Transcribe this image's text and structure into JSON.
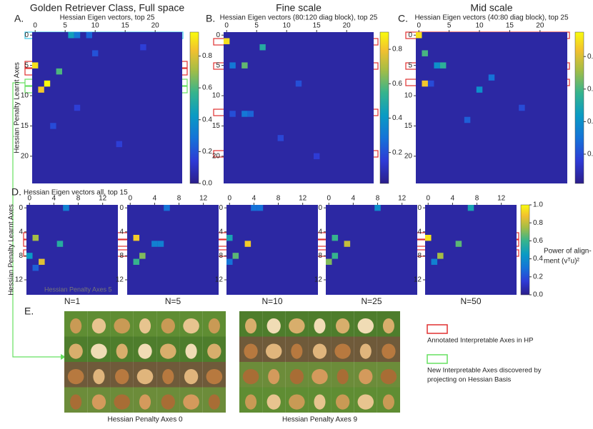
{
  "chart_data": [
    {
      "type": "heatmap",
      "panel": "A.",
      "title": "Golden Retriever Class, Full space",
      "subtitle": "Hessian Eigen vectors, top 25",
      "ylabel": "Hessian Penalty Learnt Axes",
      "size": 25,
      "xticks": [
        0,
        5,
        10,
        15,
        20
      ],
      "yticks": [
        0,
        5,
        10,
        15,
        20
      ],
      "cells": [
        [
          0,
          6,
          0.45
        ],
        [
          0,
          7,
          0.3
        ],
        [
          0,
          9,
          0.25
        ],
        [
          5,
          0,
          0.9
        ],
        [
          6,
          4,
          0.6
        ],
        [
          8,
          2,
          0.95
        ],
        [
          9,
          1,
          0.85
        ],
        [
          3,
          10,
          0.2
        ],
        [
          12,
          7,
          0.15
        ],
        [
          15,
          3,
          0.18
        ],
        [
          18,
          14,
          0.15
        ],
        [
          2,
          18,
          0.15
        ]
      ],
      "clim": [
        0,
        0.95
      ],
      "cticks": [
        {
          "value": 0,
          "label": "0.0"
        },
        0.2,
        0.4,
        0.6,
        0.8
      ]
    },
    {
      "type": "heatmap",
      "panel": "B.",
      "title": "Fine scale",
      "subtitle": "Hessian Eigen vectors (80:120 diag block), top 25",
      "size": 25,
      "xticks": [
        0,
        5,
        10,
        15,
        20
      ],
      "yticks": [
        0,
        5,
        10,
        15,
        20
      ],
      "cells": [
        [
          1,
          0,
          0.85
        ],
        [
          2,
          6,
          0.5
        ],
        [
          5,
          3,
          0.6
        ],
        [
          5,
          1,
          0.3
        ],
        [
          13,
          3,
          0.3
        ],
        [
          13,
          4,
          0.25
        ],
        [
          13,
          1,
          0.2
        ],
        [
          8,
          12,
          0.2
        ],
        [
          17,
          9,
          0.18
        ],
        [
          20,
          15,
          0.15
        ]
      ],
      "clim": [
        0.02,
        0.9
      ],
      "cticks": [
        0.2,
        0.4,
        0.6,
        0.8
      ]
    },
    {
      "type": "heatmap",
      "panel": "C.",
      "title": "Mid scale",
      "subtitle": "Hessian Eigen vectors (40:80 diag block), top 25",
      "size": 25,
      "xticks": [
        0,
        5,
        10,
        15,
        20
      ],
      "yticks": [
        0,
        5,
        10,
        15,
        20
      ],
      "cells": [
        [
          0,
          0,
          0.9
        ],
        [
          3,
          1,
          0.6
        ],
        [
          5,
          3,
          0.4
        ],
        [
          5,
          4,
          0.55
        ],
        [
          8,
          1,
          0.85
        ],
        [
          8,
          2,
          0.2
        ],
        [
          9,
          10,
          0.4
        ],
        [
          7,
          12,
          0.3
        ],
        [
          14,
          8,
          0.25
        ],
        [
          12,
          17,
          0.2
        ]
      ],
      "clim": [
        0.02,
        0.95
      ],
      "cticks": [
        0.2,
        0.4,
        0.6,
        0.8
      ]
    },
    {
      "type": "heatmap",
      "panel": "D.",
      "subtitle": "Hessian Eigen vectors all, top 15",
      "ylabel": "Hessian Penalty Learnt Axes",
      "caption": "N=1",
      "note": "Hessian Penalty Axes 5",
      "size": 15,
      "xticks": [
        0,
        4,
        8,
        12
      ],
      "yticks": [
        0,
        4,
        8,
        12
      ],
      "cells": [
        [
          0,
          6,
          0.35
        ],
        [
          5,
          1,
          0.75
        ],
        [
          6,
          5,
          0.55
        ],
        [
          8,
          0,
          0.45
        ],
        [
          9,
          2,
          0.85
        ],
        [
          10,
          1,
          0.25
        ]
      ]
    },
    {
      "type": "heatmap",
      "caption": "N=5",
      "size": 15,
      "xticks": [
        0,
        4,
        8,
        12
      ],
      "yticks": [
        0,
        4,
        8,
        12
      ],
      "cells": [
        [
          0,
          6,
          0.3
        ],
        [
          5,
          1,
          0.9
        ],
        [
          6,
          4,
          0.35
        ],
        [
          6,
          5,
          0.35
        ],
        [
          8,
          2,
          0.7
        ],
        [
          9,
          1,
          0.6
        ]
      ]
    },
    {
      "type": "heatmap",
      "caption": "N=10",
      "size": 15,
      "xticks": [
        0,
        4,
        8,
        12
      ],
      "yticks": [
        0,
        4,
        8,
        12
      ],
      "cells": [
        [
          0,
          4,
          0.3
        ],
        [
          0,
          5,
          0.3
        ],
        [
          5,
          0,
          0.5
        ],
        [
          6,
          3,
          0.9
        ],
        [
          8,
          1,
          0.65
        ],
        [
          9,
          0,
          0.3
        ]
      ]
    },
    {
      "type": "heatmap",
      "caption": "N=25",
      "size": 15,
      "xticks": [
        0,
        4,
        8,
        12
      ],
      "yticks": [
        0,
        4,
        8,
        12
      ],
      "cells": [
        [
          0,
          8,
          0.4
        ],
        [
          5,
          1,
          0.6
        ],
        [
          6,
          3,
          0.8
        ],
        [
          8,
          1,
          0.6
        ],
        [
          9,
          0,
          0.7
        ]
      ]
    },
    {
      "type": "heatmap",
      "caption": "N=50",
      "size": 15,
      "xticks": [
        0,
        4,
        8,
        12
      ],
      "yticks": [
        0,
        4,
        8,
        12
      ],
      "cells": [
        [
          0,
          7,
          0.5
        ],
        [
          5,
          0,
          0.95
        ],
        [
          6,
          5,
          0.65
        ],
        [
          8,
          2,
          0.75
        ],
        [
          9,
          1,
          0.35
        ]
      ]
    },
    {
      "type": "colorbar",
      "clim": [
        0,
        1
      ],
      "cticks": [
        {
          "value": 0,
          "label": "0.0"
        },
        0.2,
        0.4,
        0.6,
        0.8,
        {
          "value": 1,
          "label": "1.0"
        }
      ],
      "label": [
        "Power of align-",
        "ment  (vᵀu)²"
      ]
    }
  ],
  "images": {
    "panel": "E.",
    "captions": [
      "Hessian Penalty Axes 0",
      "Hessian Penalty Axes 9"
    ],
    "legend": [
      {
        "color": "#e03030",
        "lines": [
          "Annotated Interpretable Axes in HP"
        ]
      },
      {
        "color": "#66e060",
        "lines": [
          "New Interpretable Axes discovered by",
          "projecting on Hessian Basis"
        ]
      }
    ]
  }
}
